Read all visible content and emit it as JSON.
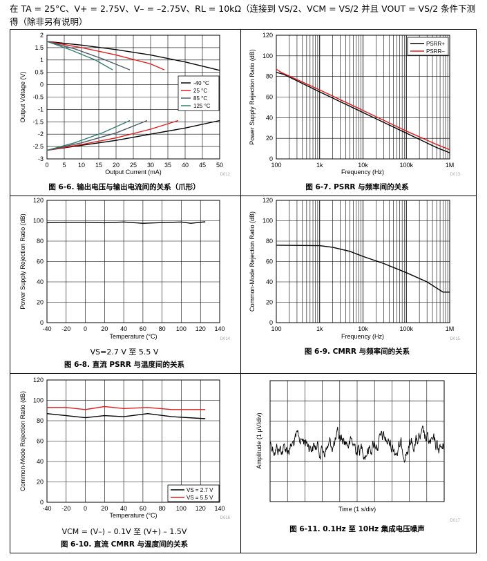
{
  "header_text": "在 TA = 25°C、V+ = 2.75V、V– = –2.75V、RL = 10kΩ（连接到 VS/2、VCM = VS/2 并且 VOUT = VS/2 条件下测得（除非另有说明）",
  "colors": {
    "black": "#000000",
    "red": "#e31a1c",
    "grey": "#a9a9a9"
  },
  "chart_data": [
    {
      "id": "fig6_6",
      "type": "line",
      "title": "图 6-6. 输出电压与输出电流间的关系（爪形）",
      "xlabel": "Output Current (mA)",
      "ylabel": "Output Voltage (V)",
      "xlim": [
        0,
        50
      ],
      "ylim": [
        -3,
        2
      ],
      "xticks": [
        "0",
        "5",
        "10",
        "15",
        "20",
        "25",
        "30",
        "35",
        "40",
        "45",
        "50"
      ],
      "yticks": [
        "-3",
        "-2.5",
        "-2",
        "-1.5",
        "-1",
        "-0.5",
        "0",
        "0.5",
        "1",
        "1.5",
        "2"
      ],
      "code": "D012",
      "legend": [
        "-40 °C",
        "25 °C",
        "85 °C",
        "125 °C"
      ],
      "series": [
        {
          "name": "-40 °C",
          "color": "#000000",
          "x": [
            0,
            10,
            20,
            30,
            40,
            50
          ],
          "y": [
            1.75,
            1.6,
            1.42,
            1.2,
            0.92,
            0.58
          ]
        },
        {
          "name": "25 °C",
          "color": "#e31a1c",
          "x": [
            0,
            10,
            20,
            30,
            34
          ],
          "y": [
            1.75,
            1.5,
            1.2,
            0.84,
            0.6
          ]
        },
        {
          "name": "85 °C",
          "color": "#4a5a66",
          "x": [
            0,
            8,
            16,
            24
          ],
          "y": [
            1.75,
            1.45,
            1.05,
            0.6
          ]
        },
        {
          "name": "125 °C",
          "color": "#2f7d6d",
          "x": [
            0,
            7,
            14,
            19
          ],
          "y": [
            1.75,
            1.4,
            1.0,
            0.6
          ]
        },
        {
          "name": "-40 °C",
          "color": "#000000",
          "x": [
            0,
            10,
            20,
            30,
            40,
            50
          ],
          "y": [
            -2.65,
            -2.45,
            -2.25,
            -2.0,
            -1.75,
            -1.45
          ]
        },
        {
          "name": "25 °C",
          "color": "#e31a1c",
          "x": [
            0,
            10,
            20,
            30,
            38
          ],
          "y": [
            -2.65,
            -2.42,
            -2.15,
            -1.8,
            -1.45
          ]
        },
        {
          "name": "85 °C",
          "color": "#4a5a66",
          "x": [
            0,
            10,
            20,
            29
          ],
          "y": [
            -2.65,
            -2.35,
            -1.95,
            -1.45
          ]
        },
        {
          "name": "125 °C",
          "color": "#2f7d6d",
          "x": [
            0,
            8,
            16,
            24
          ],
          "y": [
            -2.65,
            -2.35,
            -1.95,
            -1.45
          ]
        }
      ]
    },
    {
      "id": "fig6_7",
      "type": "line",
      "title": "图 6-7. PSRR 与频率间的关系",
      "xlabel": "Frequency (Hz)",
      "ylabel": "Power Supply Rejection Ratio (dB)",
      "xscale": "log",
      "xlim": [
        100,
        1000000
      ],
      "ylim": [
        0,
        120
      ],
      "xticks": [
        "100",
        "1k",
        "10k",
        "100k",
        "1M"
      ],
      "yticks": [
        "0",
        "20",
        "40",
        "60",
        "80",
        "100",
        "120"
      ],
      "code": "D013",
      "legend": [
        "PSRR+",
        "PSRR–"
      ],
      "series": [
        {
          "name": "PSRR+",
          "color": "#000000",
          "x": [
            100,
            150,
            1000,
            10000,
            100000,
            500000,
            1000000
          ],
          "y": [
            84,
            82,
            65,
            45,
            25,
            11,
            6
          ]
        },
        {
          "name": "PSRR–",
          "color": "#e31a1c",
          "x": [
            100,
            130,
            1000,
            10000,
            100000,
            500000,
            1000000
          ],
          "y": [
            87,
            84,
            67,
            47,
            27,
            14,
            9
          ]
        }
      ]
    },
    {
      "id": "fig6_8",
      "type": "line",
      "title": "图 6-8. 直流 PSRR 与温度间的关系",
      "subtitle": "VS=2.7 V 至 5.5 V",
      "xlabel": "Temperature (°C)",
      "ylabel": "Power Supply Rejection Ratio (dB)",
      "xlim": [
        -40,
        140
      ],
      "ylim": [
        0,
        120
      ],
      "xticks": [
        "-40",
        "-20",
        "0",
        "20",
        "40",
        "60",
        "80",
        "100",
        "120",
        "140"
      ],
      "yticks": [
        "0",
        "20",
        "40",
        "60",
        "80",
        "100",
        "120"
      ],
      "code": "D014",
      "series": [
        {
          "name": "PSRR",
          "color": "#000000",
          "x": [
            -40,
            -20,
            0,
            20,
            40,
            60,
            80,
            100,
            110,
            125
          ],
          "y": [
            98,
            98.5,
            98.5,
            98,
            98.8,
            97.5,
            98.2,
            98.8,
            97.5,
            99
          ]
        }
      ]
    },
    {
      "id": "fig6_9",
      "type": "line",
      "title": "图 6-9. CMRR 与频率间的关系",
      "xlabel": "Frequency (Hz)",
      "ylabel": "Common-Mode Rejection Ratio (dB)",
      "xscale": "log",
      "xlim": [
        100,
        1000000
      ],
      "ylim": [
        0,
        120
      ],
      "xticks": [
        "100",
        "1k",
        "10k",
        "100k",
        "1M"
      ],
      "yticks": [
        "0",
        "20",
        "40",
        "60",
        "80",
        "100",
        "120"
      ],
      "code": "D015",
      "series": [
        {
          "name": "CMRR",
          "color": "#000000",
          "x": [
            100,
            1000,
            2000,
            5000,
            10000,
            30000,
            100000,
            300000,
            700000,
            1000000
          ],
          "y": [
            76,
            75.5,
            74,
            70,
            65,
            58,
            49,
            40,
            30,
            30
          ]
        }
      ]
    },
    {
      "id": "fig6_10",
      "type": "line",
      "title": "图 6-10. 直流 CMRR 与温度间的关系",
      "subtitle": "VCM = (V–) – 0.1V 至 (V+) – 1.5V",
      "xlabel": "Temperature (°C)",
      "ylabel": "Common-Mode Rejection Ratio (dB)",
      "xlim": [
        -40,
        140
      ],
      "ylim": [
        0,
        120
      ],
      "xticks": [
        "-40",
        "-20",
        "0",
        "20",
        "40",
        "60",
        "80",
        "100",
        "120",
        "140"
      ],
      "yticks": [
        "0",
        "20",
        "40",
        "60",
        "80",
        "100",
        "120"
      ],
      "code": "D016",
      "legend": [
        "VS = 2.7 V",
        "VS = 5.5 V"
      ],
      "series": [
        {
          "name": "VS = 2.7 V",
          "color": "#000000",
          "x": [
            -40,
            -20,
            0,
            20,
            40,
            65,
            90,
            125
          ],
          "y": [
            87,
            85,
            83,
            85,
            84,
            87,
            84,
            82
          ]
        },
        {
          "name": "VS = 5.5 V",
          "color": "#e31a1c",
          "x": [
            -40,
            -20,
            0,
            20,
            40,
            65,
            90,
            125
          ],
          "y": [
            93,
            93,
            91,
            94,
            92,
            93,
            91,
            91
          ]
        }
      ]
    },
    {
      "id": "fig6_11",
      "type": "line",
      "title": "图 6-11. 0.1Hz 至 10Hz 集成电压噪声",
      "xlabel": "Time (1 s/div)",
      "ylabel": "Amplitude (1 μV/div)",
      "code": "D017"
    }
  ]
}
